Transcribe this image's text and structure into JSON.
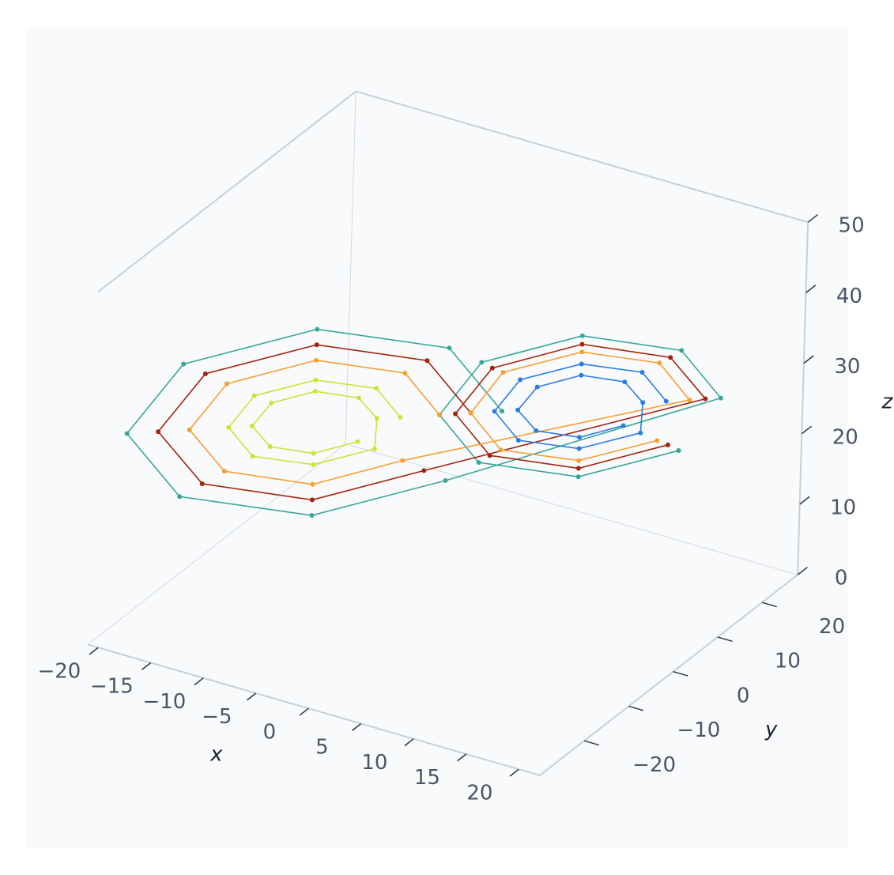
{
  "chart_data": {
    "type": "line3d",
    "xlabel": "x",
    "ylabel": "y",
    "zlabel": "z",
    "xlim": [
      -21,
      22
    ],
    "ylim": [
      -30,
      28
    ],
    "zlim": [
      0,
      50
    ],
    "xticks": [
      {
        "value": -20,
        "label": "−20"
      },
      {
        "value": -15,
        "label": "−15"
      },
      {
        "value": -10,
        "label": "−10"
      },
      {
        "value": -5,
        "label": "−5"
      },
      0,
      5,
      10,
      15,
      20
    ],
    "yticks": [
      {
        "value": -20,
        "label": "−20"
      },
      {
        "value": -10,
        "label": "−10"
      },
      0,
      10,
      20
    ],
    "zticks": [
      0,
      10,
      20,
      30,
      40,
      50
    ],
    "series": [
      {
        "color": "#3aa69b",
        "x": [
          3.5,
          0,
          -8.5,
          -17,
          -20.5,
          -17,
          -8.5,
          0,
          17.5,
          14.9,
          8.5,
          2.1,
          -0.5,
          2.1,
          8.5,
          14.9
        ],
        "y": [
          4,
          0,
          -9.8,
          -19.6,
          -23.6,
          -19.6,
          -9.8,
          0,
          20.1,
          17.1,
          9.8,
          2.4,
          -0.6,
          2.4,
          9.8,
          17.1
        ],
        "z": [
          27,
          36.4,
          40.2,
          36.4,
          27,
          17.6,
          13.8,
          17.6,
          27,
          34.1,
          37,
          34.1,
          27,
          19.9,
          17,
          19.9
        ]
      },
      {
        "color": "#a3240e",
        "x": [
          1.5,
          -1.4,
          -8.5,
          -15.6,
          -18.5,
          -15.6,
          -8.5,
          -1.4,
          16.5,
          14.2,
          8.5,
          2.8,
          0.5,
          2.8,
          8.5,
          14.2
        ],
        "y": [
          1.7,
          -1.6,
          -9.8,
          -17.9,
          -21.3,
          -17.9,
          -9.8,
          -1.6,
          19,
          16.3,
          9.8,
          3.2,
          0.6,
          3.2,
          9.8,
          16.3
        ],
        "z": [
          27,
          34.8,
          38,
          34.8,
          27,
          19.2,
          16,
          19.2,
          27,
          33.2,
          35.8,
          33.2,
          27,
          20.8,
          18.2,
          20.8
        ]
      },
      {
        "color": "#f5a030",
        "x": [
          -0.5,
          -2.8,
          -8.5,
          -14.2,
          -16.5,
          -14.2,
          -8.5,
          -2.8,
          15.5,
          13.5,
          8.5,
          3.5,
          1.5,
          3.5,
          8.5,
          13.5
        ],
        "y": [
          -0.6,
          -3.2,
          -9.8,
          -16.3,
          -19,
          -16.3,
          -9.8,
          -3.2,
          17.8,
          15.5,
          9.8,
          4,
          1.7,
          4,
          9.8,
          15.5
        ],
        "z": [
          27,
          33.2,
          35.8,
          33.2,
          27,
          20.8,
          18.2,
          20.8,
          27,
          32.5,
          34.7,
          32.5,
          27,
          21.5,
          19.3,
          21.5
        ]
      },
      {
        "color": "#2a7de1",
        "x": [
          14,
          12.4,
          8.5,
          4.6,
          3,
          4.6,
          8.5,
          12.4,
          12.5,
          11.3,
          8.5,
          5.7,
          4.5,
          5.7,
          8.5,
          11.3
        ],
        "y": [
          16.1,
          14.3,
          9.8,
          5.3,
          3.5,
          5.3,
          9.8,
          14.3,
          14.4,
          13,
          9.8,
          6.6,
          5.2,
          6.6,
          9.8,
          13
        ],
        "z": [
          27,
          31.3,
          33,
          31.3,
          27,
          22.7,
          21,
          22.7,
          27,
          30.1,
          31.4,
          30.1,
          27,
          23.9,
          22.6,
          23.9
        ]
      },
      {
        "color": "#cde23a",
        "x": [
          -3,
          -4.6,
          -8.5,
          -12.4,
          -14,
          -12.4,
          -8.5,
          -4.6,
          -4.5,
          -5.7,
          -8.5,
          -11.3,
          -12.5,
          -11.3,
          -8.5,
          -5.7
        ],
        "y": [
          -3.5,
          -5.3,
          -9.8,
          -14.3,
          -16.1,
          -14.3,
          -9.8,
          -5.3,
          -5.2,
          -6.6,
          -9.8,
          -13,
          -14.4,
          -13,
          -9.8,
          -6.6
        ],
        "z": [
          27,
          31.3,
          33,
          31.3,
          27,
          22.7,
          21,
          22.7,
          27,
          30.1,
          31.4,
          30.1,
          27,
          23.9,
          22.6,
          23.9
        ]
      }
    ]
  }
}
